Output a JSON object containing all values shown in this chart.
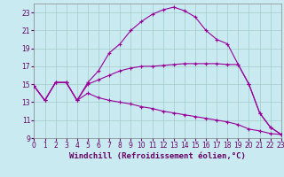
{
  "background_color": "#c8eaf0",
  "grid_color": "#a0ccc8",
  "line_color": "#990099",
  "x_min": 0,
  "x_max": 23,
  "y_min": 9,
  "y_max": 24,
  "xlabel": "Windchill (Refroidissement éolien,°C)",
  "xlabel_fontsize": 6.5,
  "tick_fontsize": 5.5,
  "line1_x": [
    0,
    1,
    2,
    3,
    4,
    5,
    6,
    7,
    8,
    9,
    10,
    11,
    12,
    13,
    14,
    15,
    16,
    17,
    18,
    19,
    20,
    21,
    22,
    23
  ],
  "line1_y": [
    14.8,
    13.2,
    15.2,
    15.2,
    13.2,
    15.2,
    16.5,
    18.5,
    19.5,
    21.0,
    22.0,
    22.8,
    23.3,
    23.6,
    23.2,
    22.5,
    21.0,
    20.0,
    19.5,
    17.2,
    15.0,
    11.8,
    10.2,
    9.4
  ],
  "line2_x": [
    0,
    1,
    2,
    3,
    4,
    5,
    6,
    7,
    8,
    9,
    10,
    11,
    12,
    13,
    14,
    15,
    16,
    17,
    18,
    19,
    20,
    21,
    22,
    23
  ],
  "line2_y": [
    14.8,
    13.2,
    15.2,
    15.2,
    13.2,
    15.0,
    15.5,
    16.0,
    16.5,
    16.8,
    17.0,
    17.0,
    17.1,
    17.2,
    17.3,
    17.3,
    17.3,
    17.3,
    17.2,
    17.2,
    15.0,
    11.8,
    10.2,
    9.4
  ],
  "line3_x": [
    0,
    1,
    2,
    3,
    4,
    5,
    6,
    7,
    8,
    9,
    10,
    11,
    12,
    13,
    14,
    15,
    16,
    17,
    18,
    19,
    20,
    21,
    22,
    23
  ],
  "line3_y": [
    14.8,
    13.2,
    15.2,
    15.2,
    13.2,
    14.0,
    13.5,
    13.2,
    13.0,
    12.8,
    12.5,
    12.3,
    12.0,
    11.8,
    11.6,
    11.4,
    11.2,
    11.0,
    10.8,
    10.5,
    10.0,
    9.8,
    9.5,
    9.4
  ]
}
